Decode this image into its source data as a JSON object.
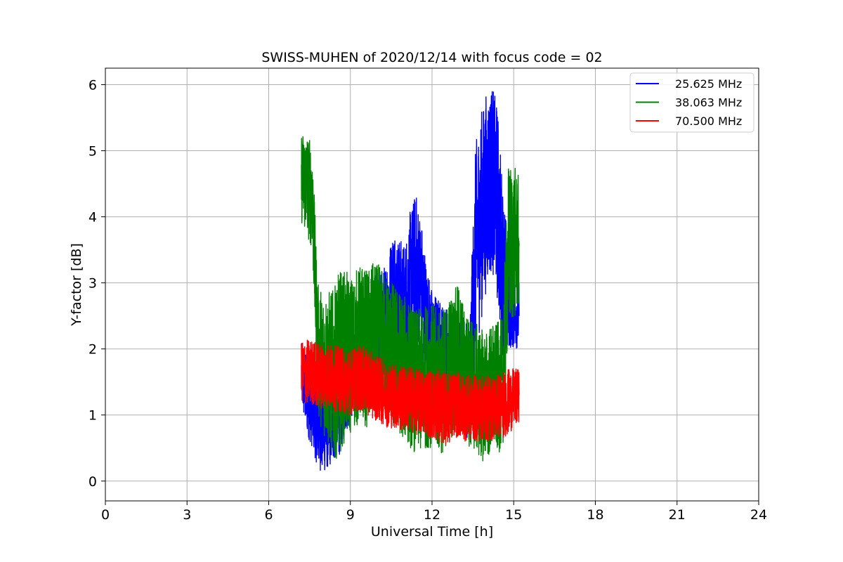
{
  "chart_data": {
    "type": "line",
    "title": "SWISS-MUHEN of 2020/12/14 with focus code = 02",
    "xlabel": "Universal Time [h]",
    "ylabel": "Y-factor [dB]",
    "xlim": [
      0,
      24
    ],
    "ylim": [
      -0.3,
      6.25
    ],
    "x_ticks": [
      0,
      3,
      6,
      9,
      12,
      15,
      18,
      21,
      24
    ],
    "x_tick_labels": [
      "0",
      "3",
      "6",
      "9",
      "12",
      "15",
      "18",
      "21",
      "24"
    ],
    "y_ticks": [
      0,
      1,
      2,
      3,
      4,
      5,
      6
    ],
    "y_tick_labels": [
      "0",
      "1",
      "2",
      "3",
      "4",
      "5",
      "6"
    ],
    "grid": true,
    "legend_position": "top-right",
    "series": [
      {
        "name": "25.625 MHz",
        "color": "#0000ff",
        "x": [
          7.2,
          7.4,
          7.6,
          7.8,
          8.0,
          8.2,
          8.4,
          8.6,
          8.8,
          9.0,
          9.2,
          9.4,
          9.6,
          9.8,
          10.0,
          10.2,
          10.4,
          10.6,
          10.8,
          11.0,
          11.2,
          11.4,
          11.6,
          11.8,
          12.0,
          12.2,
          12.4,
          12.6,
          12.8,
          13.0,
          13.2,
          13.4,
          13.6,
          13.8,
          14.0,
          14.2,
          14.4,
          14.6,
          14.8,
          15.0,
          15.2
        ],
        "values": [
          1.6,
          1.3,
          1.1,
          0.9,
          0.8,
          0.8,
          0.9,
          1.0,
          1.3,
          1.5,
          1.7,
          1.9,
          2.0,
          2.3,
          2.5,
          2.4,
          2.6,
          2.9,
          2.7,
          2.6,
          3.0,
          3.2,
          3.0,
          2.4,
          2.1,
          2.0,
          1.9,
          1.8,
          1.7,
          1.6,
          1.5,
          1.6,
          3.5,
          4.0,
          4.4,
          4.6,
          4.2,
          3.2,
          2.8,
          2.6,
          2.5
        ],
        "spread": [
          0.5,
          0.6,
          0.6,
          0.7,
          0.7,
          0.6,
          0.6,
          0.6,
          0.6,
          0.6,
          0.6,
          0.6,
          0.7,
          0.7,
          0.8,
          0.8,
          0.9,
          1.0,
          1.0,
          1.0,
          1.1,
          1.2,
          1.0,
          0.9,
          0.8,
          0.8,
          0.8,
          0.8,
          0.8,
          0.8,
          0.8,
          1.0,
          1.6,
          1.6,
          1.5,
          1.4,
          1.5,
          1.3,
          0.8,
          0.6,
          0.5
        ]
      },
      {
        "name": "38.063 MHz",
        "color": "#008000",
        "x": [
          7.2,
          7.4,
          7.6,
          7.8,
          8.0,
          8.2,
          8.4,
          8.6,
          8.8,
          9.0,
          9.2,
          9.4,
          9.6,
          9.8,
          10.0,
          10.2,
          10.4,
          10.6,
          10.8,
          11.0,
          11.2,
          11.4,
          11.6,
          11.8,
          12.0,
          12.2,
          12.4,
          12.6,
          12.8,
          13.0,
          13.2,
          13.4,
          13.6,
          13.8,
          14.0,
          14.2,
          14.4,
          14.6,
          14.8,
          15.0,
          15.2
        ],
        "values": [
          4.6,
          4.5,
          4.3,
          2.0,
          1.8,
          1.7,
          1.6,
          1.8,
          1.9,
          1.9,
          2.0,
          2.1,
          2.0,
          2.1,
          2.2,
          2.1,
          2.0,
          1.9,
          1.8,
          1.7,
          1.6,
          1.5,
          1.5,
          1.6,
          1.6,
          1.5,
          1.5,
          1.7,
          1.8,
          1.9,
          1.6,
          1.5,
          1.4,
          1.3,
          1.3,
          1.4,
          1.4,
          1.5,
          3.5,
          3.6,
          3.6
        ],
        "spread": [
          0.7,
          0.8,
          0.8,
          1.0,
          1.1,
          1.2,
          1.3,
          1.4,
          1.3,
          1.2,
          1.2,
          1.2,
          1.2,
          1.2,
          1.1,
          1.1,
          1.1,
          1.1,
          1.1,
          1.1,
          1.1,
          1.1,
          1.1,
          1.1,
          1.1,
          1.1,
          1.1,
          1.1,
          1.1,
          1.1,
          1.0,
          1.0,
          1.0,
          1.0,
          1.0,
          1.0,
          1.0,
          1.0,
          1.3,
          1.2,
          1.0
        ]
      },
      {
        "name": "70.500 MHz",
        "color": "#ff0000",
        "x": [
          7.2,
          7.4,
          7.6,
          7.8,
          8.0,
          8.2,
          8.4,
          8.6,
          8.8,
          9.0,
          9.2,
          9.4,
          9.6,
          9.8,
          10.0,
          10.2,
          10.4,
          10.6,
          10.8,
          11.0,
          11.2,
          11.4,
          11.6,
          11.8,
          12.0,
          12.2,
          12.4,
          12.6,
          12.8,
          13.0,
          13.2,
          13.4,
          13.6,
          13.8,
          14.0,
          14.2,
          14.4,
          14.6,
          14.8,
          15.0,
          15.2
        ],
        "values": [
          1.65,
          1.65,
          1.65,
          1.6,
          1.6,
          1.6,
          1.55,
          1.55,
          1.5,
          1.5,
          1.55,
          1.55,
          1.5,
          1.45,
          1.4,
          1.35,
          1.3,
          1.3,
          1.25,
          1.25,
          1.25,
          1.2,
          1.2,
          1.2,
          1.15,
          1.15,
          1.1,
          1.1,
          1.15,
          1.15,
          1.1,
          1.1,
          1.1,
          1.1,
          1.1,
          1.1,
          1.15,
          1.15,
          1.2,
          1.25,
          1.3
        ],
        "spread": [
          0.45,
          0.5,
          0.5,
          0.5,
          0.5,
          0.5,
          0.5,
          0.5,
          0.5,
          0.5,
          0.5,
          0.5,
          0.5,
          0.5,
          0.5,
          0.5,
          0.5,
          0.5,
          0.5,
          0.5,
          0.5,
          0.5,
          0.5,
          0.5,
          0.55,
          0.55,
          0.55,
          0.55,
          0.5,
          0.5,
          0.5,
          0.5,
          0.5,
          0.5,
          0.5,
          0.5,
          0.5,
          0.5,
          0.5,
          0.45,
          0.4
        ]
      }
    ]
  }
}
